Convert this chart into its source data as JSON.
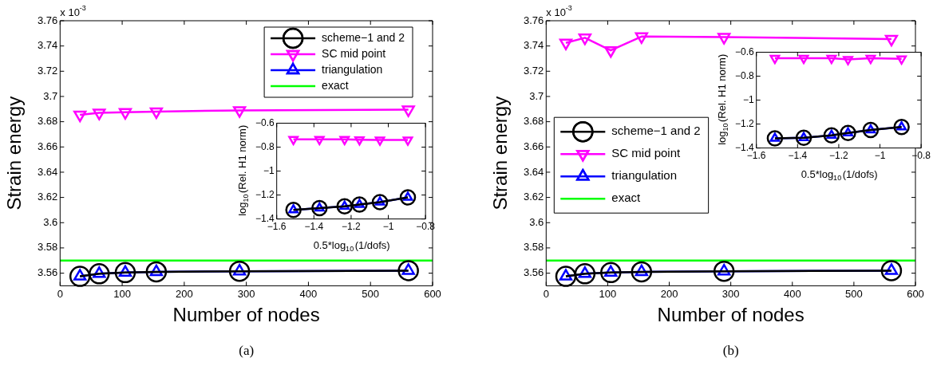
{
  "chart_data": [
    {
      "type": "line",
      "xlabel": "Number of nodes",
      "ylabel": "Strain energy",
      "annotations": [
        "x 10$^{-3}$",
        "(a)"
      ],
      "xlim": [
        0,
        600
      ],
      "xticks": [
        0,
        100,
        200,
        300,
        400,
        500,
        600
      ],
      "ylim": [
        3.55,
        3.76
      ],
      "yticks": [
        3.56,
        3.58,
        3.6,
        3.62,
        3.64,
        3.66,
        3.68,
        3.7,
        3.72,
        3.74,
        3.76
      ],
      "grid": false,
      "legend": "top right",
      "x": [
        32,
        63,
        105,
        155,
        289,
        561
      ],
      "series": [
        {
          "name": "scheme−1 and 2",
          "color": "#000000",
          "marker": "circle",
          "values": [
            3.5575,
            3.5595,
            3.5605,
            3.561,
            3.5615,
            3.562
          ]
        },
        {
          "name": "SC mid point",
          "color": "#ff00ff",
          "marker": "triangle_down",
          "values": [
            3.6855,
            3.687,
            3.6875,
            3.688,
            3.689,
            3.6895
          ]
        },
        {
          "name": "triangulation",
          "color": "#0000ff",
          "marker": "triangle",
          "values": [
            3.5575,
            3.5595,
            3.5605,
            3.561,
            3.5615,
            3.562
          ]
        }
      ],
      "ref_lines": [
        {
          "axis": "y",
          "value": 3.57,
          "label": "exact",
          "color": "#00ff00"
        }
      ]
    },
    {
      "type": "line",
      "xlabel": "0.5*log$_{10}$(1/dofs)",
      "ylabel": "log$_{10}$(Rel. H1 norm)",
      "xlim": [
        -1.6,
        -0.8
      ],
      "xticks": [
        {
          "value": -1.6,
          "label": "−1.6"
        },
        {
          "value": -1.4,
          "label": "−1.4"
        },
        {
          "value": -1.2,
          "label": "−1.2"
        },
        {
          "value": -1,
          "label": "−1"
        },
        {
          "value": -0.8,
          "label": "−0.8"
        }
      ],
      "ylim": [
        -1.4,
        -0.6
      ],
      "yticks": [
        {
          "value": -1.4,
          "label": "−1.4"
        },
        {
          "value": -1.2,
          "label": "−1.2"
        },
        {
          "value": -1,
          "label": "−1"
        },
        {
          "value": -0.8,
          "label": "−0.8"
        },
        {
          "value": -0.6,
          "label": "−0.6"
        }
      ],
      "grid": false,
      "x": [
        -1.51,
        -1.37,
        -1.235,
        -1.155,
        -1.045,
        -0.895
      ],
      "series": [
        {
          "color": "#000000",
          "marker": "circle",
          "values": [
            -1.325,
            -1.31,
            -1.295,
            -1.28,
            -1.26,
            -1.22
          ]
        },
        {
          "color": "#ff00ff",
          "marker": "triangle_down",
          "values": [
            -0.735,
            -0.735,
            -0.735,
            -0.738,
            -0.74,
            -0.74
          ]
        },
        {
          "color": "#0000ff",
          "marker": "triangle",
          "values": [
            -1.325,
            -1.31,
            -1.295,
            -1.28,
            -1.26,
            -1.22
          ]
        }
      ]
    },
    {
      "type": "line",
      "xlabel": "Number of nodes",
      "ylabel": "Strain energy",
      "annotations": [
        "x 10$^{-3}$",
        "(b)"
      ],
      "xlim": [
        0,
        600
      ],
      "xticks": [
        0,
        100,
        200,
        300,
        400,
        500,
        600
      ],
      "ylim": [
        3.55,
        3.76
      ],
      "yticks": [
        3.56,
        3.58,
        3.6,
        3.62,
        3.64,
        3.66,
        3.68,
        3.7,
        3.72,
        3.74,
        3.76
      ],
      "grid": false,
      "legend": "left",
      "x": [
        32,
        63,
        105,
        155,
        289,
        561
      ],
      "series": [
        {
          "name": "scheme−1 and 2",
          "color": "#000000",
          "marker": "circle",
          "values": [
            3.5575,
            3.5595,
            3.5605,
            3.561,
            3.5615,
            3.562
          ]
        },
        {
          "name": "SC mid point",
          "color": "#ff00ff",
          "marker": "triangle_down",
          "values": [
            3.7425,
            3.7465,
            3.7365,
            3.7475,
            3.747,
            3.7455
          ]
        },
        {
          "name": "triangulation",
          "color": "#0000ff",
          "marker": "triangle",
          "values": [
            3.5575,
            3.5595,
            3.5605,
            3.561,
            3.5615,
            3.562
          ]
        }
      ],
      "ref_lines": [
        {
          "axis": "y",
          "value": 3.57,
          "label": "exact",
          "color": "#00ff00"
        }
      ]
    },
    {
      "type": "line",
      "xlabel": "0.5*log$_{10}$(1/dofs)",
      "ylabel": "log$_{10}$(Rel. H1 norm)",
      "xlim": [
        -1.6,
        -0.8
      ],
      "xticks": [
        {
          "value": -1.6,
          "label": "−1.6"
        },
        {
          "value": -1.4,
          "label": "−1.4"
        },
        {
          "value": -1.2,
          "label": "−1.2"
        },
        {
          "value": -1,
          "label": "−1"
        },
        {
          "value": -0.8,
          "label": "−0.8"
        }
      ],
      "ylim": [
        -1.4,
        -0.6
      ],
      "yticks": [
        {
          "value": -1.4,
          "label": "−1.4"
        },
        {
          "value": -1.2,
          "label": "−1.2"
        },
        {
          "value": -1,
          "label": "−1"
        },
        {
          "value": -0.8,
          "label": "−0.8"
        },
        {
          "value": -0.6,
          "label": "−0.6"
        }
      ],
      "grid": false,
      "x": [
        -1.51,
        -1.37,
        -1.235,
        -1.155,
        -1.045,
        -0.895
      ],
      "series": [
        {
          "color": "#000000",
          "marker": "circle",
          "values": [
            -1.32,
            -1.315,
            -1.295,
            -1.275,
            -1.25,
            -1.225
          ]
        },
        {
          "color": "#ff00ff",
          "marker": "triangle_down",
          "values": [
            -0.65,
            -0.65,
            -0.65,
            -0.66,
            -0.65,
            -0.655
          ]
        },
        {
          "color": "#0000ff",
          "marker": "triangle",
          "values": [
            -1.32,
            -1.315,
            -1.295,
            -1.275,
            -1.25,
            -1.225
          ]
        }
      ]
    }
  ]
}
